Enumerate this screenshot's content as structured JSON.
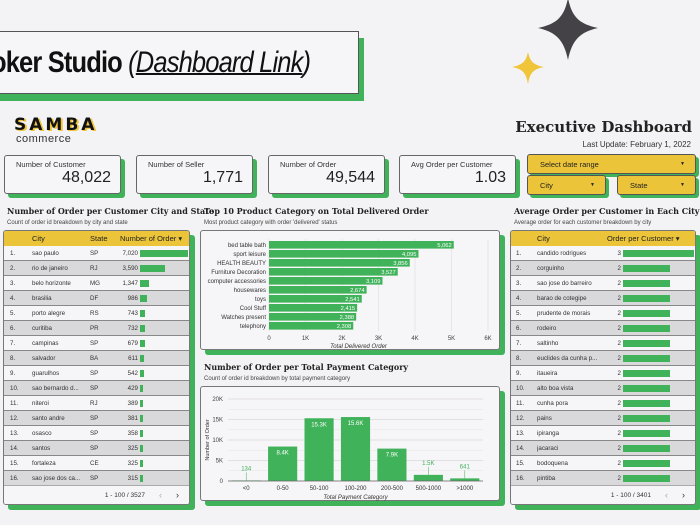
{
  "banner": {
    "title_bold": "oker Studio",
    "paren_open": " (",
    "link": "Dashboard Link",
    "paren_close": ")"
  },
  "logo": {
    "name": "SAMBA",
    "sub": "commerce"
  },
  "header": {
    "title": "Executive Dashboard",
    "last_update": "Last Update: February 1, 2022"
  },
  "kpis": [
    {
      "label": "Number of Customer",
      "value": "48,022"
    },
    {
      "label": "Number of Seller",
      "value": "1,771"
    },
    {
      "label": "Number of Order",
      "value": "49,544"
    },
    {
      "label": "Avg Order per Customer",
      "value": "1.03"
    }
  ],
  "filters": {
    "date_range": "Select date range",
    "city": "City",
    "state": "State",
    "arrow": "▼"
  },
  "colors": {
    "accent_green": "#3fb25a",
    "accent_yellow": "#ecc43a",
    "dark_star": "#444246"
  },
  "city_state_table": {
    "title": "Number of Order per Customer City and State",
    "subtitle": "Count of order id breakdown by city and state",
    "columns": [
      "City",
      "State",
      "Number of Order ▾"
    ],
    "rows": [
      {
        "n": "1.",
        "city": "sao paulo",
        "state": "SP",
        "orders": "7,020",
        "value": 7020
      },
      {
        "n": "2.",
        "city": "rio de janeiro",
        "state": "RJ",
        "orders": "3,590",
        "value": 3590
      },
      {
        "n": "3.",
        "city": "belo horizonte",
        "state": "MG",
        "orders": "1,347",
        "value": 1347
      },
      {
        "n": "4.",
        "city": "brasilia",
        "state": "DF",
        "orders": "986",
        "value": 986
      },
      {
        "n": "5.",
        "city": "porto alegre",
        "state": "RS",
        "orders": "743",
        "value": 743
      },
      {
        "n": "6.",
        "city": "curitiba",
        "state": "PR",
        "orders": "732",
        "value": 732
      },
      {
        "n": "7.",
        "city": "campinas",
        "state": "SP",
        "orders": "679",
        "value": 679
      },
      {
        "n": "8.",
        "city": "salvador",
        "state": "BA",
        "orders": "611",
        "value": 611
      },
      {
        "n": "9.",
        "city": "guarulhos",
        "state": "SP",
        "orders": "542",
        "value": 542
      },
      {
        "n": "10.",
        "city": "sao bernardo d...",
        "state": "SP",
        "orders": "429",
        "value": 429
      },
      {
        "n": "11.",
        "city": "niteroi",
        "state": "RJ",
        "orders": "389",
        "value": 389
      },
      {
        "n": "12.",
        "city": "santo andre",
        "state": "SP",
        "orders": "381",
        "value": 381
      },
      {
        "n": "13.",
        "city": "osasco",
        "state": "SP",
        "orders": "358",
        "value": 358
      },
      {
        "n": "14.",
        "city": "santos",
        "state": "SP",
        "orders": "325",
        "value": 325
      },
      {
        "n": "15.",
        "city": "fortaleza",
        "state": "CE",
        "orders": "325",
        "value": 325
      },
      {
        "n": "16.",
        "city": "sao jose dos ca...",
        "state": "SP",
        "orders": "315",
        "value": 315
      }
    ],
    "pagination": "1 - 100 / 3527",
    "prev": "‹",
    "next": "›"
  },
  "avg_city_table": {
    "title": "Average Order per Customer in Each City",
    "subtitle": "Average order for each customer breakdown by city",
    "columns": [
      "City",
      "Order per Customer ▾"
    ],
    "rows": [
      {
        "n": "1.",
        "city": "candido rodrigues",
        "value": "3",
        "num": 3
      },
      {
        "n": "2.",
        "city": "corguinho",
        "value": "2",
        "num": 2
      },
      {
        "n": "3.",
        "city": "sao jose do barreiro",
        "value": "2",
        "num": 2
      },
      {
        "n": "4.",
        "city": "barao de cotegipe",
        "value": "2",
        "num": 2
      },
      {
        "n": "5.",
        "city": "prudente de morais",
        "value": "2",
        "num": 2
      },
      {
        "n": "6.",
        "city": "rodeiro",
        "value": "2",
        "num": 2
      },
      {
        "n": "7.",
        "city": "saltinho",
        "value": "2",
        "num": 2
      },
      {
        "n": "8.",
        "city": "euclides da cunha p...",
        "value": "2",
        "num": 2
      },
      {
        "n": "9.",
        "city": "itaueira",
        "value": "2",
        "num": 2
      },
      {
        "n": "10.",
        "city": "alto boa vista",
        "value": "2",
        "num": 2
      },
      {
        "n": "11.",
        "city": "cunha pora",
        "value": "2",
        "num": 2
      },
      {
        "n": "12.",
        "city": "pains",
        "value": "2",
        "num": 2
      },
      {
        "n": "13.",
        "city": "ipiranga",
        "value": "2",
        "num": 2
      },
      {
        "n": "14.",
        "city": "jacaraci",
        "value": "2",
        "num": 2
      },
      {
        "n": "15.",
        "city": "bodoquena",
        "value": "2",
        "num": 2
      },
      {
        "n": "16.",
        "city": "pintiba",
        "value": "2",
        "num": 2
      }
    ],
    "pagination": "1 - 100 / 3401",
    "prev": "‹",
    "next": "›"
  },
  "top_products": {
    "title": "Top 10 Product Category on Total Delivered Order",
    "subtitle": "Most product category with order 'delivered' status"
  },
  "payment": {
    "title": "Number of Order per Total Payment Category",
    "subtitle": "Count of order id breakdown by total payment category"
  },
  "chart_data": [
    {
      "type": "bar",
      "orientation": "horizontal",
      "title": "Top 10 Product Category on Total Delivered Order",
      "categories": [
        "bed table bath",
        "sport leisure",
        "HEALTH BEAUTY",
        "Furniture Decoration",
        "computer accessories",
        "housewares",
        "toys",
        "Cool Stuff",
        "Watches present",
        "telephony"
      ],
      "values": [
        5062,
        4095,
        3856,
        3527,
        3109,
        2674,
        2541,
        2415,
        2388,
        2308
      ],
      "labels": [
        "5,062",
        "4,095",
        "3,856",
        "3,527",
        "3,109",
        "2,674",
        "2,541",
        "2,415",
        "2,388",
        "2,308"
      ],
      "xlabel": "Total Delivered Order",
      "ylabel": "",
      "xlim": [
        0,
        6000
      ],
      "xticks": [
        "0",
        "1K",
        "2K",
        "3K",
        "4K",
        "5K",
        "6K"
      ],
      "grid": true,
      "color": "#3fb25a"
    },
    {
      "type": "bar",
      "orientation": "vertical",
      "title": "Number of Order per Total Payment Category",
      "categories": [
        "<0",
        "0-50",
        "50-100",
        "100-200",
        "200-500",
        "500-1000",
        ">1000"
      ],
      "values": [
        134,
        8400,
        15300,
        15600,
        7900,
        1500,
        641
      ],
      "labels": [
        "134",
        "8.4K",
        "15.3K",
        "15.6K",
        "7.9K",
        "1.5K",
        "641"
      ],
      "xlabel": "Total Payment Category",
      "ylabel": "Number of Order",
      "ylim": [
        0,
        20000
      ],
      "yticks": [
        "0",
        "5K",
        "10K",
        "15K",
        "20K"
      ],
      "grid": true,
      "color": "#3fb25a"
    }
  ]
}
